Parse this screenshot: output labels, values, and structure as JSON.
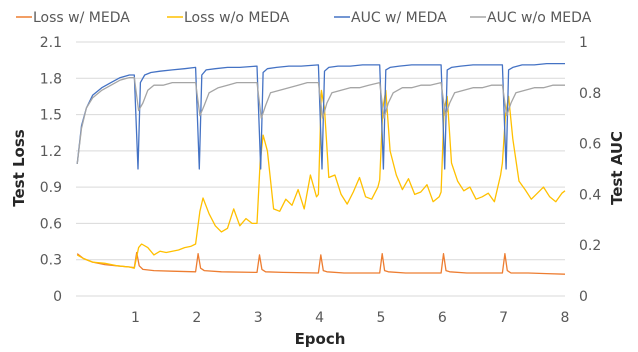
{
  "chart_data": {
    "type": "line",
    "xlabel": "Epoch",
    "ylabel_left": "Test Loss",
    "ylabel_right": "Test AUC",
    "x_ticks": [
      1,
      2,
      3,
      4,
      5,
      6,
      7,
      8
    ],
    "x_range": [
      0.03,
      8
    ],
    "y_left_ticks": [
      "0",
      "0.3",
      "0.6",
      "0.9",
      "1.2",
      "1.5",
      "1.8",
      "2.1"
    ],
    "y_left_range": [
      0,
      2.1
    ],
    "y_right_ticks": [
      "0",
      "0.2",
      "0.4",
      "0.6",
      "0.8",
      "1"
    ],
    "y_right_range": [
      0,
      1
    ],
    "grid": true,
    "legend_position": "top",
    "series": [
      {
        "name": "Loss w/ MEDA",
        "color": "#ED7D31",
        "axis": "left",
        "x": [
          0.05,
          0.15,
          0.3,
          0.5,
          0.7,
          0.9,
          0.98,
          1.02,
          1.06,
          1.12,
          1.3,
          1.6,
          1.98,
          2.02,
          2.06,
          2.12,
          2.4,
          2.98,
          3.02,
          3.06,
          3.12,
          3.4,
          3.98,
          4.02,
          4.06,
          4.12,
          4.4,
          4.98,
          5.02,
          5.06,
          5.12,
          5.4,
          5.98,
          6.02,
          6.06,
          6.12,
          6.4,
          6.98,
          7.02,
          7.06,
          7.12,
          7.4,
          7.7,
          8.0
        ],
        "y": [
          0.35,
          0.31,
          0.28,
          0.26,
          0.25,
          0.24,
          0.235,
          0.36,
          0.25,
          0.22,
          0.21,
          0.205,
          0.2,
          0.35,
          0.23,
          0.21,
          0.2,
          0.195,
          0.34,
          0.22,
          0.2,
          0.195,
          0.19,
          0.34,
          0.21,
          0.2,
          0.19,
          0.19,
          0.35,
          0.21,
          0.2,
          0.19,
          0.19,
          0.35,
          0.21,
          0.2,
          0.19,
          0.19,
          0.35,
          0.21,
          0.19,
          0.19,
          0.185,
          0.18
        ]
      },
      {
        "name": "Loss w/o MEDA",
        "color": "#FFC000",
        "axis": "left",
        "x": [
          0.05,
          0.15,
          0.3,
          0.5,
          0.7,
          0.9,
          0.98,
          1.05,
          1.1,
          1.2,
          1.3,
          1.4,
          1.5,
          1.6,
          1.7,
          1.8,
          1.9,
          1.98,
          2.05,
          2.1,
          2.2,
          2.3,
          2.4,
          2.5,
          2.6,
          2.7,
          2.8,
          2.9,
          2.98,
          3.03,
          3.08,
          3.15,
          3.25,
          3.35,
          3.45,
          3.55,
          3.65,
          3.75,
          3.85,
          3.95,
          3.98,
          4.03,
          4.08,
          4.15,
          4.25,
          4.35,
          4.45,
          4.55,
          4.65,
          4.75,
          4.85,
          4.95,
          4.98,
          5.03,
          5.08,
          5.15,
          5.25,
          5.35,
          5.45,
          5.55,
          5.65,
          5.75,
          5.85,
          5.95,
          5.98,
          6.03,
          6.08,
          6.15,
          6.25,
          6.35,
          6.45,
          6.55,
          6.65,
          6.75,
          6.85,
          6.95,
          6.98,
          7.03,
          7.08,
          7.15,
          7.25,
          7.35,
          7.45,
          7.55,
          7.65,
          7.75,
          7.85,
          7.95,
          8.0
        ],
        "y": [
          0.34,
          0.31,
          0.28,
          0.27,
          0.25,
          0.24,
          0.23,
          0.4,
          0.43,
          0.4,
          0.34,
          0.37,
          0.36,
          0.37,
          0.38,
          0.4,
          0.41,
          0.43,
          0.7,
          0.81,
          0.68,
          0.58,
          0.53,
          0.56,
          0.72,
          0.58,
          0.64,
          0.6,
          0.6,
          1.1,
          1.33,
          1.2,
          0.72,
          0.7,
          0.8,
          0.75,
          0.88,
          0.72,
          1.0,
          0.82,
          0.84,
          1.7,
          1.55,
          0.98,
          1.0,
          0.84,
          0.76,
          0.86,
          0.98,
          0.82,
          0.8,
          0.9,
          0.96,
          1.55,
          1.7,
          1.2,
          1.0,
          0.88,
          0.97,
          0.84,
          0.86,
          0.92,
          0.78,
          0.82,
          0.86,
          1.55,
          1.65,
          1.1,
          0.95,
          0.87,
          0.9,
          0.8,
          0.82,
          0.85,
          0.78,
          1.0,
          1.1,
          1.5,
          1.65,
          1.3,
          0.95,
          0.88,
          0.8,
          0.85,
          0.9,
          0.82,
          0.78,
          0.85,
          0.87
        ]
      },
      {
        "name": "AUC w/ MEDA",
        "color": "#4472C4",
        "axis": "right",
        "x": [
          0.05,
          0.12,
          0.2,
          0.3,
          0.45,
          0.6,
          0.75,
          0.9,
          0.98,
          1.04,
          1.08,
          1.15,
          1.25,
          1.4,
          1.6,
          1.8,
          1.98,
          2.04,
          2.08,
          2.15,
          2.3,
          2.5,
          2.7,
          2.98,
          3.04,
          3.08,
          3.15,
          3.3,
          3.5,
          3.7,
          3.98,
          4.04,
          4.08,
          4.15,
          4.3,
          4.5,
          4.7,
          4.98,
          5.04,
          5.08,
          5.15,
          5.3,
          5.5,
          5.7,
          5.98,
          6.04,
          6.08,
          6.15,
          6.3,
          6.5,
          6.7,
          6.98,
          7.04,
          7.08,
          7.15,
          7.3,
          7.5,
          7.7,
          8.0
        ],
        "y": [
          0.52,
          0.67,
          0.74,
          0.79,
          0.82,
          0.84,
          0.86,
          0.87,
          0.87,
          0.5,
          0.84,
          0.87,
          0.88,
          0.885,
          0.89,
          0.895,
          0.9,
          0.5,
          0.87,
          0.89,
          0.895,
          0.9,
          0.9,
          0.905,
          0.5,
          0.88,
          0.895,
          0.9,
          0.905,
          0.905,
          0.91,
          0.5,
          0.885,
          0.9,
          0.905,
          0.905,
          0.91,
          0.91,
          0.5,
          0.89,
          0.9,
          0.905,
          0.91,
          0.91,
          0.91,
          0.5,
          0.89,
          0.9,
          0.905,
          0.91,
          0.91,
          0.91,
          0.5,
          0.89,
          0.9,
          0.91,
          0.91,
          0.915,
          0.915
        ]
      },
      {
        "name": "AUC w/o MEDA",
        "color": "#A5A5A5",
        "axis": "right",
        "x": [
          0.05,
          0.12,
          0.2,
          0.3,
          0.45,
          0.6,
          0.75,
          0.9,
          0.98,
          1.05,
          1.12,
          1.2,
          1.3,
          1.45,
          1.6,
          1.75,
          1.9,
          1.98,
          2.05,
          2.12,
          2.2,
          2.35,
          2.5,
          2.65,
          2.8,
          2.98,
          3.05,
          3.12,
          3.2,
          3.35,
          3.5,
          3.65,
          3.8,
          3.98,
          4.05,
          4.12,
          4.2,
          4.35,
          4.5,
          4.65,
          4.8,
          4.98,
          5.05,
          5.12,
          5.2,
          5.35,
          5.5,
          5.65,
          5.8,
          5.98,
          6.05,
          6.12,
          6.2,
          6.35,
          6.5,
          6.65,
          6.8,
          6.98,
          7.05,
          7.12,
          7.2,
          7.35,
          7.5,
          7.65,
          7.8,
          8.0
        ],
        "y": [
          0.52,
          0.66,
          0.74,
          0.78,
          0.81,
          0.83,
          0.85,
          0.86,
          0.86,
          0.73,
          0.76,
          0.81,
          0.83,
          0.83,
          0.84,
          0.84,
          0.84,
          0.84,
          0.71,
          0.75,
          0.8,
          0.82,
          0.83,
          0.84,
          0.84,
          0.84,
          0.7,
          0.75,
          0.8,
          0.81,
          0.82,
          0.83,
          0.84,
          0.84,
          0.7,
          0.76,
          0.8,
          0.81,
          0.82,
          0.82,
          0.83,
          0.84,
          0.7,
          0.76,
          0.8,
          0.82,
          0.82,
          0.83,
          0.83,
          0.84,
          0.71,
          0.76,
          0.8,
          0.81,
          0.82,
          0.82,
          0.83,
          0.83,
          0.71,
          0.76,
          0.8,
          0.81,
          0.82,
          0.82,
          0.83,
          0.83
        ]
      }
    ]
  }
}
